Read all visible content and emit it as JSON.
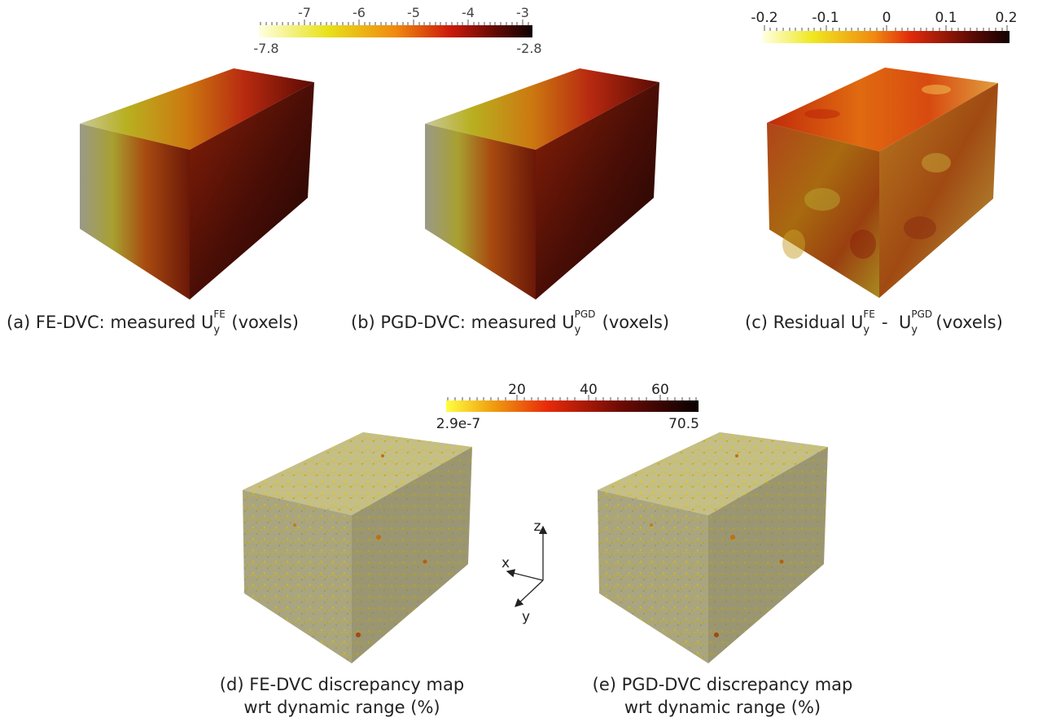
{
  "colorbars": {
    "uy": {
      "ticks": [
        "-7",
        "-6",
        "-5",
        "-4",
        "-3"
      ],
      "min_label": "-7.8",
      "max_label": "-2.8"
    },
    "residual": {
      "ticks": [
        "-0.2",
        "-0.1",
        "0",
        "0.1",
        "0.2"
      ]
    },
    "discrepancy": {
      "ticks": [
        "20",
        "40",
        "60"
      ],
      "min_label": "2.9e-7",
      "max_label": "70.5"
    }
  },
  "captions": {
    "a": {
      "prefix": "(a) FE-DVC: measured U",
      "sup": "FE",
      "sub": "y",
      "suffix": "(voxels)"
    },
    "b": {
      "prefix": "(b) PGD-DVC: measured U",
      "sup": "PGD",
      "sub": "y",
      "suffix": "(voxels)"
    },
    "c": {
      "prefix": "(c) Residual U",
      "sup1": "FE",
      "sub1": "y",
      "mid": " -  U",
      "sup2": "PGD",
      "sub2": "y",
      "suffix": "(voxels)"
    },
    "d": {
      "line1": "(d) FE-DVC discrepancy map",
      "line2": "wrt dynamic range (%)"
    },
    "e": {
      "line1": "(e) PGD-DVC discrepancy map",
      "line2": "wrt dynamic range (%)"
    }
  },
  "axes": {
    "x": "x",
    "y": "y",
    "z": "z"
  },
  "colors": {
    "hot_light": "#ffffe0",
    "hot_yellow": "#e8e21a",
    "hot_orange": "#f08a10",
    "hot_red": "#cc1a0a",
    "hot_dark": "#5a0a04",
    "hot_black": "#120202",
    "discrepancy_face": "#a8a480"
  }
}
